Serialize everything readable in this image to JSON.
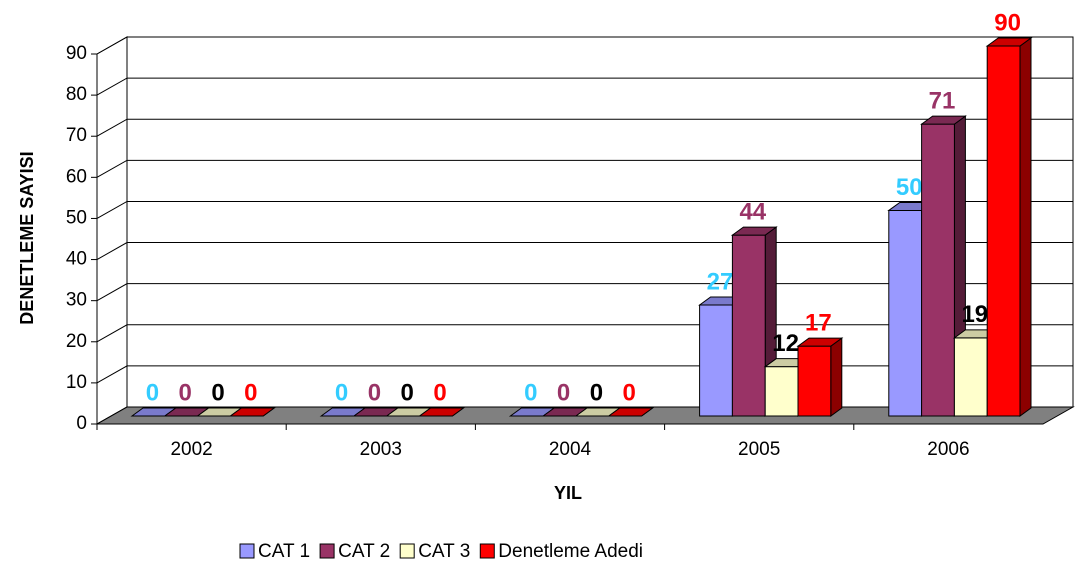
{
  "chart_data": {
    "type": "bar3d",
    "categories": [
      "2002",
      "2003",
      "2004",
      "2005",
      "2006"
    ],
    "series": [
      {
        "name": "CAT 1",
        "color": "#9999ff",
        "label_color": "#33ccff",
        "values": [
          0,
          0,
          0,
          27,
          50
        ]
      },
      {
        "name": "CAT 2",
        "color": "#993366",
        "label_color": "#993366",
        "values": [
          0,
          0,
          0,
          44,
          71
        ]
      },
      {
        "name": "CAT 3",
        "color": "#ffffcc",
        "label_color": "#000000",
        "values": [
          0,
          0,
          0,
          12,
          19
        ]
      },
      {
        "name": "Denetleme Adedi",
        "color": "#ff0000",
        "label_color": "#ff0000",
        "values": [
          0,
          0,
          0,
          17,
          90
        ]
      }
    ],
    "xlabel": "YIL",
    "ylabel": "DENETLEME SAYISI",
    "ylim": [
      0,
      90
    ],
    "yticks": [
      0,
      10,
      20,
      30,
      40,
      50,
      60,
      70,
      80,
      90
    ],
    "grid": true,
    "legend": "bottom"
  }
}
